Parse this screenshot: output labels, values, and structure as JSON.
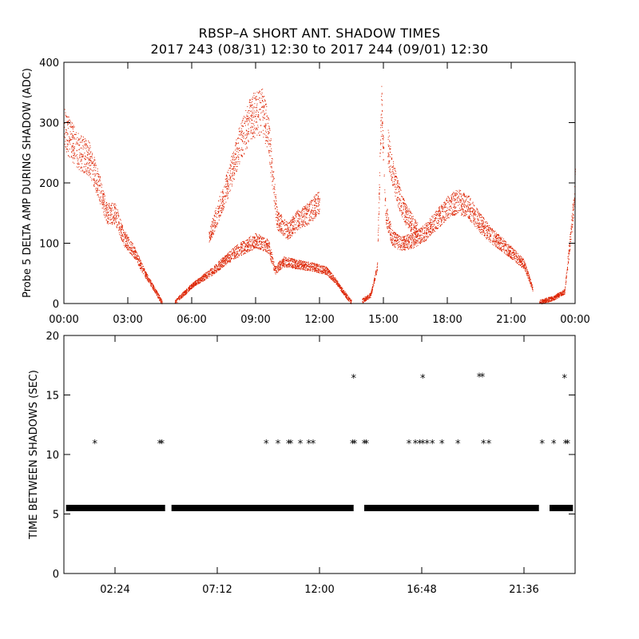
{
  "title_line1": "RBSP–A SHORT ANT. SHADOW TIMES",
  "title_line2": "2017 243 (08/31) 12:30 to 2017 244 (09/01) 12:30",
  "chart_data": [
    {
      "type": "scatter",
      "color": "#dd2200",
      "ylabel": "Probe 5 DELTA AMP DURING SHADOW (ADC)",
      "xlabel": "",
      "x_unit": "hours of day",
      "xlim": [
        0,
        24
      ],
      "ylim": [
        0,
        400
      ],
      "xticks": [
        0,
        3,
        6,
        9,
        12,
        15,
        18,
        21,
        24
      ],
      "xtick_labels": [
        "00:00",
        "03:00",
        "06:00",
        "09:00",
        "12:00",
        "15:00",
        "18:00",
        "21:00",
        "00:00"
      ],
      "yticks": [
        0,
        100,
        200,
        300,
        400
      ],
      "ytick_labels": [
        "0",
        "100",
        "200",
        "300",
        "400"
      ],
      "series_trend": [
        {
          "x": [
            0.0,
            0.6,
            1.2,
            1.6,
            2.0,
            2.4,
            2.8,
            3.3,
            3.8,
            4.3,
            4.6
          ],
          "y": [
            290,
            255,
            240,
            200,
            150,
            150,
            110,
            85,
            50,
            20,
            2
          ]
        },
        {
          "x": [
            5.2,
            6.0,
            7.0,
            7.5,
            8.0,
            8.5,
            9.0,
            9.6,
            9.9,
            10.3,
            11.0,
            11.8,
            12.3,
            12.7,
            13.1,
            13.5
          ],
          "y": [
            2,
            30,
            55,
            70,
            85,
            95,
            105,
            95,
            55,
            70,
            65,
            60,
            55,
            40,
            20,
            2
          ]
        },
        {
          "x": [
            6.8,
            7.2,
            7.7,
            8.2,
            8.8,
            9.3,
            9.6,
            10.0,
            10.5,
            11.0,
            11.5,
            12.0
          ],
          "y": [
            110,
            150,
            200,
            260,
            310,
            320,
            280,
            140,
            120,
            140,
            150,
            170
          ]
        },
        {
          "x": [
            14.0,
            14.4,
            14.7,
            14.9,
            15.1,
            15.4,
            15.8,
            16.4,
            17.0,
            17.5,
            18.0,
            18.5,
            19.0,
            19.5,
            20.0,
            20.5,
            21.0,
            21.6,
            22.0
          ],
          "y": [
            5,
            15,
            60,
            330,
            150,
            110,
            100,
            105,
            120,
            140,
            160,
            170,
            160,
            135,
            115,
            100,
            85,
            65,
            25
          ]
        },
        {
          "x": [
            15.2,
            15.6,
            16.0,
            16.6
          ],
          "y": [
            260,
            190,
            150,
            120
          ]
        },
        {
          "x": [
            22.3,
            23.0,
            23.5,
            23.8,
            24.0
          ],
          "y": [
            2,
            10,
            20,
            120,
            200
          ]
        }
      ]
    },
    {
      "type": "scatter",
      "marker": "*",
      "color": "#000000",
      "ylabel": "TIME BETWEEN SHADOWS (SEC)",
      "xlabel": "",
      "x_unit": "hours of day",
      "xlim": [
        0,
        24
      ],
      "ylim": [
        0,
        20
      ],
      "xticks": [
        2.4,
        7.2,
        12.0,
        16.8,
        21.6
      ],
      "xtick_labels": [
        "02:24",
        "07:12",
        "12:00",
        "16:48",
        "21:36"
      ],
      "yticks": [
        0,
        5,
        10,
        15,
        20
      ],
      "ytick_labels": [
        "0",
        "5",
        "10",
        "15",
        "20"
      ],
      "baseline_value": 5.5,
      "baseline_segments": [
        [
          0.1,
          4.75
        ],
        [
          5.05,
          13.6
        ],
        [
          14.1,
          22.3
        ],
        [
          22.8,
          23.9
        ]
      ],
      "outliers": [
        {
          "x": 1.45,
          "y": 11.0
        },
        {
          "x": 4.5,
          "y": 11.0
        },
        {
          "x": 4.6,
          "y": 11.0
        },
        {
          "x": 9.5,
          "y": 11.0
        },
        {
          "x": 10.05,
          "y": 11.0
        },
        {
          "x": 10.55,
          "y": 11.0
        },
        {
          "x": 10.65,
          "y": 11.0
        },
        {
          "x": 11.1,
          "y": 11.0
        },
        {
          "x": 11.5,
          "y": 11.0
        },
        {
          "x": 11.7,
          "y": 11.0
        },
        {
          "x": 13.6,
          "y": 16.5
        },
        {
          "x": 13.55,
          "y": 11.0
        },
        {
          "x": 13.65,
          "y": 11.0
        },
        {
          "x": 14.1,
          "y": 11.0
        },
        {
          "x": 14.2,
          "y": 11.0
        },
        {
          "x": 16.2,
          "y": 11.0
        },
        {
          "x": 16.5,
          "y": 11.0
        },
        {
          "x": 16.7,
          "y": 11.0
        },
        {
          "x": 16.85,
          "y": 16.5
        },
        {
          "x": 16.85,
          "y": 11.0
        },
        {
          "x": 17.05,
          "y": 11.0
        },
        {
          "x": 17.3,
          "y": 11.0
        },
        {
          "x": 17.75,
          "y": 11.0
        },
        {
          "x": 18.5,
          "y": 11.0
        },
        {
          "x": 19.5,
          "y": 16.6
        },
        {
          "x": 19.65,
          "y": 16.6
        },
        {
          "x": 19.7,
          "y": 11.0
        },
        {
          "x": 19.95,
          "y": 11.0
        },
        {
          "x": 22.45,
          "y": 11.0
        },
        {
          "x": 23.0,
          "y": 11.0
        },
        {
          "x": 23.5,
          "y": 16.5
        },
        {
          "x": 23.55,
          "y": 11.0
        },
        {
          "x": 23.65,
          "y": 11.0
        }
      ]
    }
  ]
}
